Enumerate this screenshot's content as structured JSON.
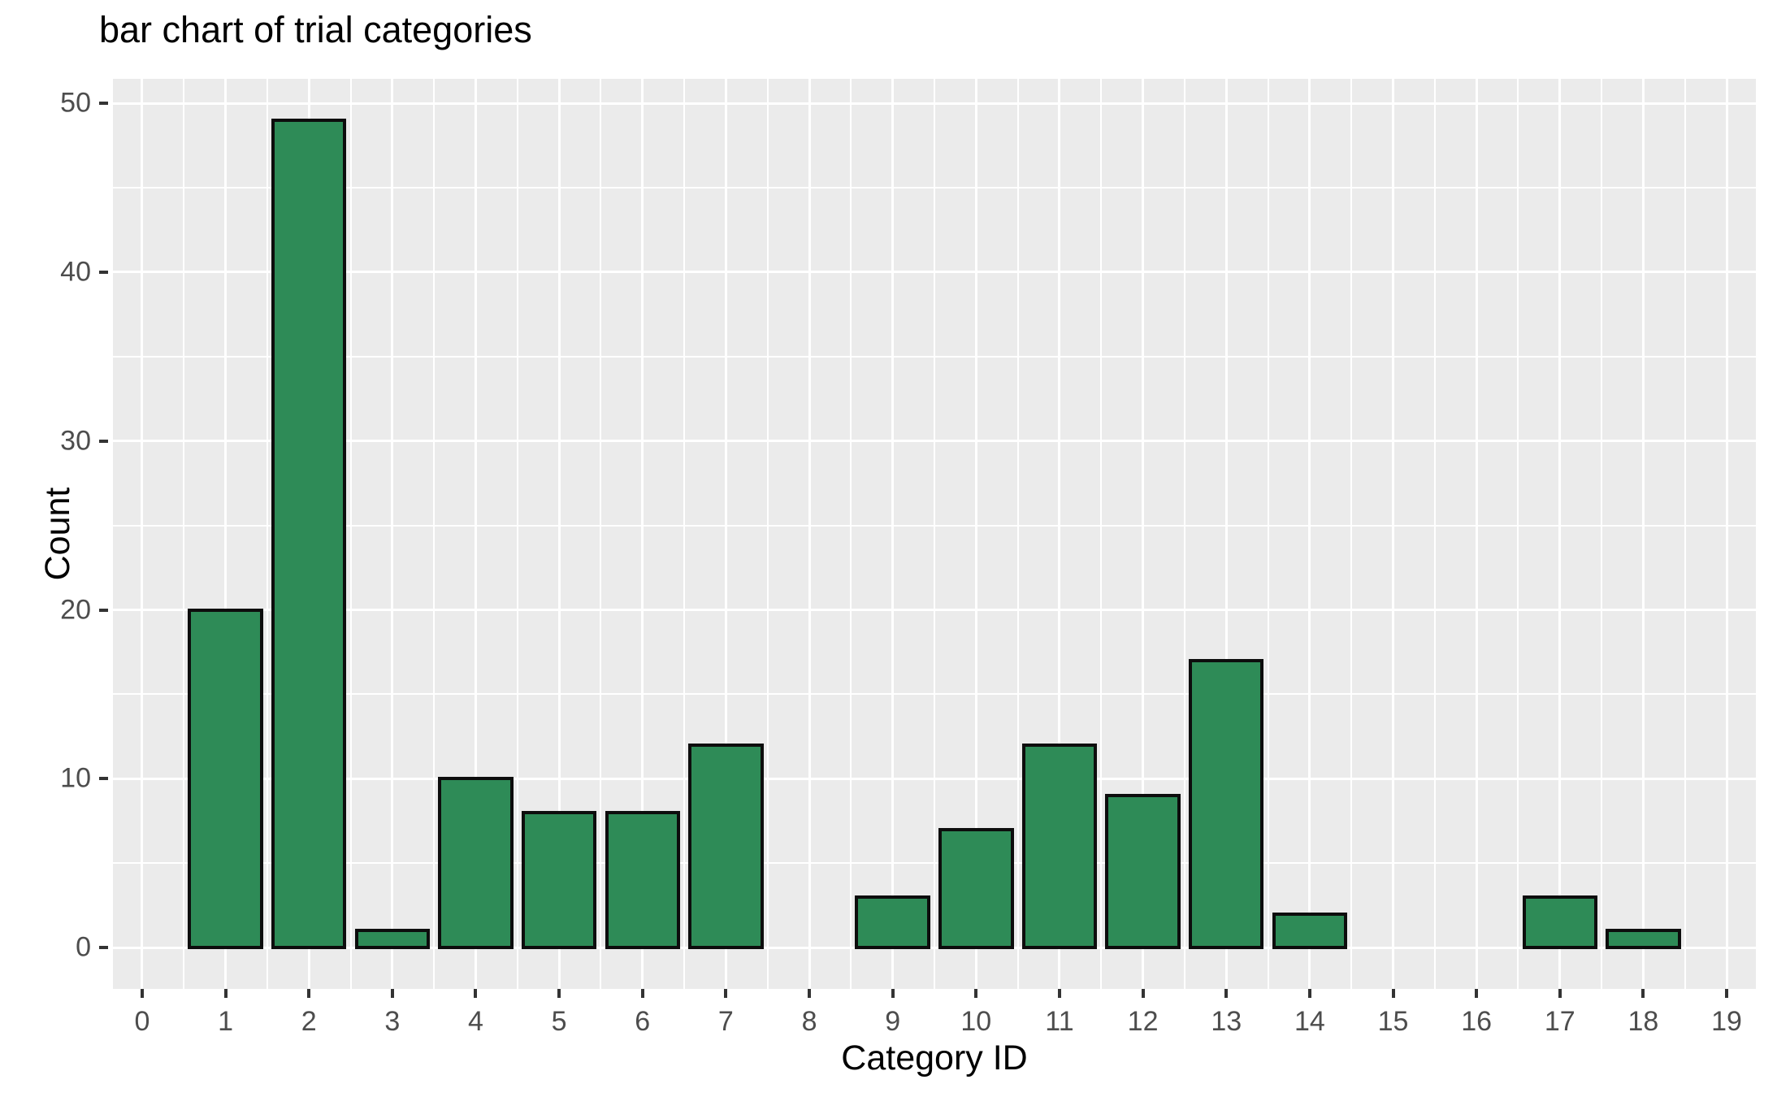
{
  "chart_data": {
    "type": "bar",
    "title": "bar chart of trial categories",
    "xlabel": "Category ID",
    "ylabel": "Count",
    "categories": [
      0,
      1,
      2,
      3,
      4,
      5,
      6,
      7,
      8,
      9,
      10,
      11,
      12,
      13,
      14,
      15,
      16,
      17,
      18,
      19
    ],
    "values": [
      0,
      20,
      49,
      1,
      10,
      8,
      8,
      12,
      0,
      3,
      7,
      12,
      9,
      17,
      2,
      0,
      0,
      3,
      1,
      0
    ],
    "x_ticks": [
      0,
      1,
      2,
      3,
      4,
      5,
      6,
      7,
      8,
      9,
      10,
      11,
      12,
      13,
      14,
      15,
      16,
      17,
      18,
      19
    ],
    "y_ticks": [
      0,
      10,
      20,
      30,
      40,
      50
    ],
    "y_minor_ticks": [
      5,
      15,
      25,
      35,
      45
    ],
    "xlim": [
      -0.35,
      19.35
    ],
    "ylim": [
      -2.45,
      51.45
    ],
    "bar_width": 0.9,
    "grid": "major and minor, white on gray panel",
    "legend_position": "none",
    "colors": {
      "bar_fill": "#2e8b57",
      "bar_edge": "#0d0d0d",
      "panel_bg": "#ebebeb",
      "gridline": "#ffffff",
      "tick_label": "#4d4d4d",
      "tick_mark": "#333333",
      "title": "#000000",
      "axis_title": "#000000",
      "figure_bg": "#ffffff"
    }
  }
}
